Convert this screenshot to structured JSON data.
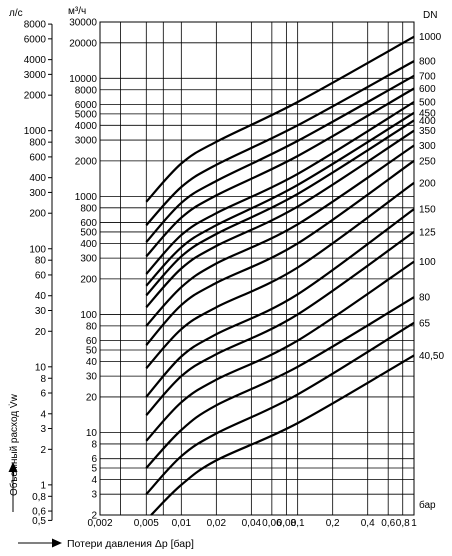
{
  "chart_data": {
    "type": "line",
    "x_scale": "log",
    "y_scale": "log",
    "grid": true,
    "xlim": [
      0.002,
      1
    ],
    "ylim_m3h": [
      2,
      30000
    ],
    "ylim_ls": [
      0.5,
      8000
    ],
    "unit_ls": "л/с",
    "unit_m3h": "м³/ч",
    "dn_header": "DN",
    "x_unit_label": "бар",
    "ylabel": "Объемный расход V̇w",
    "xlabel": "Потери давления Δp [бар]",
    "x_ticks": [
      {
        "v": 0.002,
        "t": "0,002"
      },
      {
        "v": 0.005,
        "t": "0,005"
      },
      {
        "v": 0.01,
        "t": "0,01"
      },
      {
        "v": 0.02,
        "t": "0,02"
      },
      {
        "v": 0.04,
        "t": "0,04"
      },
      {
        "v": 0.06,
        "t": "0,06"
      },
      {
        "v": 0.08,
        "t": "0,08"
      },
      {
        "v": 0.1,
        "t": "0,1"
      },
      {
        "v": 0.2,
        "t": "0,2"
      },
      {
        "v": 0.4,
        "t": "0,4"
      },
      {
        "v": 0.6,
        "t": "0,6"
      },
      {
        "v": 0.8,
        "t": "0,8"
      },
      {
        "v": 1,
        "t": "1"
      }
    ],
    "y_ticks_m3h": [
      {
        "v": 2,
        "t": "2"
      },
      {
        "v": 3,
        "t": "3"
      },
      {
        "v": 4,
        "t": "4"
      },
      {
        "v": 5,
        "t": "5"
      },
      {
        "v": 6,
        "t": "6"
      },
      {
        "v": 8,
        "t": "8"
      },
      {
        "v": 10,
        "t": "10"
      },
      {
        "v": 20,
        "t": "20"
      },
      {
        "v": 30,
        "t": "30"
      },
      {
        "v": 40,
        "t": "40"
      },
      {
        "v": 50,
        "t": "50"
      },
      {
        "v": 60,
        "t": "60"
      },
      {
        "v": 80,
        "t": "80"
      },
      {
        "v": 100,
        "t": "100"
      },
      {
        "v": 200,
        "t": "200"
      },
      {
        "v": 300,
        "t": "300"
      },
      {
        "v": 400,
        "t": "400"
      },
      {
        "v": 500,
        "t": "500"
      },
      {
        "v": 600,
        "t": "600"
      },
      {
        "v": 800,
        "t": "800"
      },
      {
        "v": 1000,
        "t": "1000"
      },
      {
        "v": 2000,
        "t": "2000"
      },
      {
        "v": 3000,
        "t": "3000"
      },
      {
        "v": 4000,
        "t": "4000"
      },
      {
        "v": 5000,
        "t": "5000"
      },
      {
        "v": 6000,
        "t": "6000"
      },
      {
        "v": 8000,
        "t": "8000"
      },
      {
        "v": 10000,
        "t": "10000"
      },
      {
        "v": 20000,
        "t": "20000"
      },
      {
        "v": 30000,
        "t": "30000"
      }
    ],
    "y_ticks_ls": [
      {
        "v": 0.5,
        "t": "0,5"
      },
      {
        "v": 0.6,
        "t": "0,6"
      },
      {
        "v": 0.8,
        "t": "0,8"
      },
      {
        "v": 1,
        "t": "1"
      },
      {
        "v": 2,
        "t": "2"
      },
      {
        "v": 3,
        "t": "3"
      },
      {
        "v": 4,
        "t": "4"
      },
      {
        "v": 6,
        "t": "6"
      },
      {
        "v": 8,
        "t": "8"
      },
      {
        "v": 10,
        "t": "10"
      },
      {
        "v": 20,
        "t": "20"
      },
      {
        "v": 30,
        "t": "30"
      },
      {
        "v": 40,
        "t": "40"
      },
      {
        "v": 60,
        "t": "60"
      },
      {
        "v": 80,
        "t": "80"
      },
      {
        "v": 100,
        "t": "100"
      },
      {
        "v": 200,
        "t": "200"
      },
      {
        "v": 300,
        "t": "300"
      },
      {
        "v": 400,
        "t": "400"
      },
      {
        "v": 600,
        "t": "600"
      },
      {
        "v": 800,
        "t": "800"
      },
      {
        "v": 1000,
        "t": "1000"
      },
      {
        "v": 2000,
        "t": "2000"
      },
      {
        "v": 3000,
        "t": "3000"
      },
      {
        "v": 4000,
        "t": "4000"
      },
      {
        "v": 6000,
        "t": "6000"
      },
      {
        "v": 8000,
        "t": "8000"
      }
    ],
    "series": [
      {
        "name": "40,50",
        "points": [
          [
            0.0055,
            2
          ],
          [
            0.01,
            3.6
          ],
          [
            0.02,
            5.8
          ],
          [
            0.1,
            12
          ],
          [
            1,
            45
          ]
        ]
      },
      {
        "name": "65",
        "points": [
          [
            0.005,
            3
          ],
          [
            0.01,
            6.3
          ],
          [
            0.02,
            9.8
          ],
          [
            0.1,
            21
          ],
          [
            1,
            85
          ]
        ]
      },
      {
        "name": "80",
        "points": [
          [
            0.005,
            5
          ],
          [
            0.01,
            10.5
          ],
          [
            0.02,
            17
          ],
          [
            0.1,
            36
          ],
          [
            1,
            140
          ]
        ]
      },
      {
        "name": "100",
        "points": [
          [
            0.005,
            8.5
          ],
          [
            0.01,
            18
          ],
          [
            0.02,
            28
          ],
          [
            0.1,
            60
          ],
          [
            1,
            280
          ]
        ]
      },
      {
        "name": "125",
        "points": [
          [
            0.005,
            14
          ],
          [
            0.01,
            30
          ],
          [
            0.02,
            46
          ],
          [
            0.1,
            100
          ],
          [
            1,
            500
          ]
        ]
      },
      {
        "name": "150",
        "points": [
          [
            0.005,
            20
          ],
          [
            0.01,
            44
          ],
          [
            0.02,
            68
          ],
          [
            0.1,
            148
          ],
          [
            1,
            780
          ]
        ]
      },
      {
        "name": "200",
        "points": [
          [
            0.005,
            35
          ],
          [
            0.01,
            75
          ],
          [
            0.02,
            115
          ],
          [
            0.1,
            250
          ],
          [
            1,
            1300
          ]
        ]
      },
      {
        "name": "250",
        "points": [
          [
            0.005,
            55
          ],
          [
            0.01,
            120
          ],
          [
            0.02,
            185
          ],
          [
            0.1,
            400
          ],
          [
            1,
            2000
          ]
        ]
      },
      {
        "name": "300",
        "points": [
          [
            0.005,
            80
          ],
          [
            0.01,
            170
          ],
          [
            0.02,
            270
          ],
          [
            0.1,
            580
          ],
          [
            1,
            2700
          ]
        ]
      },
      {
        "name": "350",
        "points": [
          [
            0.005,
            115
          ],
          [
            0.01,
            245
          ],
          [
            0.02,
            380
          ],
          [
            0.1,
            820
          ],
          [
            1,
            3600
          ]
        ]
      },
      {
        "name": "400",
        "points": [
          [
            0.005,
            145
          ],
          [
            0.01,
            310
          ],
          [
            0.02,
            480
          ],
          [
            0.1,
            1050
          ],
          [
            1,
            4400
          ]
        ]
      },
      {
        "name": "450",
        "points": [
          [
            0.005,
            175
          ],
          [
            0.01,
            370
          ],
          [
            0.02,
            570
          ],
          [
            0.1,
            1250
          ],
          [
            1,
            5100
          ]
        ]
      },
      {
        "name": "500",
        "points": [
          [
            0.005,
            220
          ],
          [
            0.01,
            470
          ],
          [
            0.02,
            720
          ],
          [
            0.1,
            1550
          ],
          [
            1,
            6300
          ]
        ]
      },
      {
        "name": "600",
        "points": [
          [
            0.005,
            310
          ],
          [
            0.01,
            660
          ],
          [
            0.02,
            1020
          ],
          [
            0.1,
            2200
          ],
          [
            1,
            8200
          ]
        ]
      },
      {
        "name": "700",
        "points": [
          [
            0.005,
            410
          ],
          [
            0.01,
            880
          ],
          [
            0.02,
            1350
          ],
          [
            0.1,
            2950
          ],
          [
            1,
            10500
          ]
        ]
      },
      {
        "name": "800",
        "points": [
          [
            0.005,
            570
          ],
          [
            0.01,
            1200
          ],
          [
            0.02,
            1850
          ],
          [
            0.1,
            4000
          ],
          [
            1,
            14000
          ]
        ]
      },
      {
        "name": "1000",
        "points": [
          [
            0.005,
            900
          ],
          [
            0.01,
            1900
          ],
          [
            0.02,
            2900
          ],
          [
            0.1,
            6300
          ],
          [
            1,
            22500
          ]
        ]
      }
    ]
  }
}
